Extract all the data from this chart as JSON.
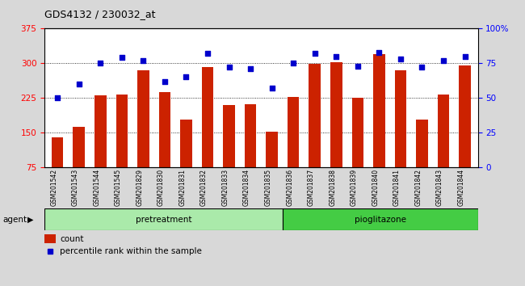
{
  "title": "GDS4132 / 230032_at",
  "samples": [
    "GSM201542",
    "GSM201543",
    "GSM201544",
    "GSM201545",
    "GSM201829",
    "GSM201830",
    "GSM201831",
    "GSM201832",
    "GSM201833",
    "GSM201834",
    "GSM201835",
    "GSM201836",
    "GSM201837",
    "GSM201838",
    "GSM201839",
    "GSM201840",
    "GSM201841",
    "GSM201842",
    "GSM201843",
    "GSM201844"
  ],
  "bar_values": [
    140,
    163,
    230,
    232,
    285,
    237,
    178,
    292,
    210,
    212,
    152,
    228,
    298,
    302,
    225,
    320,
    285,
    178,
    233,
    296
  ],
  "dot_values_pct": [
    50,
    60,
    75,
    79,
    77,
    62,
    65,
    82,
    72,
    71,
    57,
    75,
    82,
    80,
    73,
    83,
    78,
    72,
    77,
    80
  ],
  "ylim_left": [
    75,
    375
  ],
  "ylim_right": [
    0,
    100
  ],
  "yticks_left": [
    75,
    150,
    225,
    300,
    375
  ],
  "yticks_right": [
    0,
    25,
    50,
    75,
    100
  ],
  "ytick_labels_right": [
    "0",
    "25",
    "50",
    "75",
    "100%"
  ],
  "bar_color": "#cc2200",
  "dot_color": "#0000cc",
  "background_color": "#d8d8d8",
  "plot_bg_color": "#ffffff",
  "pretreatment_color": "#aaeaaa",
  "pioglitazone_color": "#44cc44",
  "n_pretreatment": 11,
  "n_pioglitazone": 9,
  "legend_count_label": "count",
  "legend_pct_label": "percentile rank within the sample",
  "agent_label": "agent"
}
